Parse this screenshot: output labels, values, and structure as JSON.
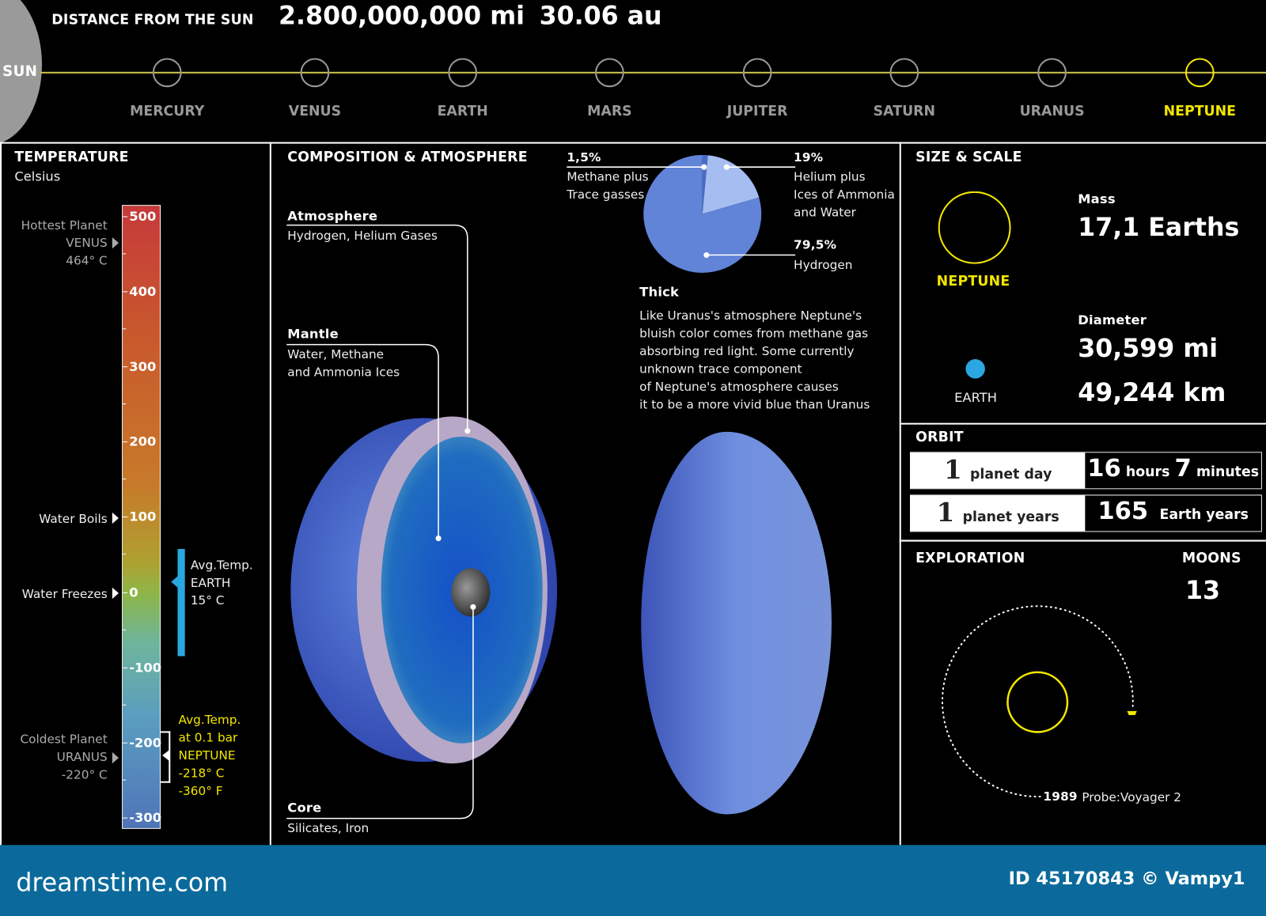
{
  "header": {
    "distance_label": "DISTANCE FROM THE SUN",
    "distance_mi": "2.800,000,000 mi",
    "distance_au": "30.06 au",
    "sun_label": "SUN",
    "planets": [
      "MERCURY",
      "VENUS",
      "EARTH",
      "MARS",
      "JUPITER",
      "SATURN",
      "URANUS",
      "NEPTUNE"
    ],
    "selected": "NEPTUNE"
  },
  "temperature": {
    "title": "TEMPERATURE",
    "unit": "Celsius",
    "scale_ticks": [
      "500",
      "400",
      "300",
      "200",
      "100",
      "0",
      "-100",
      "-200",
      "-300"
    ],
    "hottest": {
      "label": "Hottest Planet",
      "planet": "VENUS",
      "temp": "464° C"
    },
    "boils": "Water Boils",
    "freezes": "Water Freezes",
    "earth": {
      "l1": "Avg.Temp.",
      "l2": "EARTH",
      "l3": "15° C"
    },
    "coldest": {
      "label": "Coldest Planet",
      "planet": "URANUS",
      "temp": "-220° C"
    },
    "neptune": {
      "l1": "Avg.Temp.",
      "l2": "at 0.1 bar",
      "l3": "NEPTUNE",
      "l4": "-218° C",
      "l5": "-360° F"
    }
  },
  "composition": {
    "title": "COMPOSITION & ATMOSPHERE",
    "atmosphere": {
      "name": "Atmosphere",
      "desc": "Hydrogen, Helium Gases"
    },
    "mantle": {
      "name": "Mantle",
      "desc1": "Water, Methane",
      "desc2": "and Ammonia Ices"
    },
    "core": {
      "name": "Core",
      "desc": "Silicates, Iron"
    },
    "pie": [
      {
        "pct": "1,5%",
        "value": 1.5,
        "l1": "Methane plus",
        "l2": "Trace gasses",
        "color": "#4a6cc8"
      },
      {
        "pct": "19%",
        "value": 19,
        "l1": "Helium plus",
        "l2": "Ices of Ammonia",
        "l3": "and Water",
        "color": "#a6bdf2"
      },
      {
        "pct": "79,5%",
        "value": 79.5,
        "l1": "Hydrogen",
        "color": "#6183d8"
      }
    ],
    "thick_title": "Thick",
    "thick_lines": [
      "Like Uranus's atmosphere Neptune's",
      "bluish color comes from methane gas",
      "absorbing red light. Some currently",
      "unknown trace component",
      "of Neptune's atmosphere causes",
      "it to be a more vivid blue than Uranus"
    ]
  },
  "size": {
    "title": "SIZE & SCALE",
    "neptune": "NEPTUNE",
    "earth": "EARTH",
    "mass_label": "Mass",
    "mass": "17,1 Earths",
    "diameter_label": "Diameter",
    "diameter_mi": "30,599 mi",
    "diameter_km": "49,244 km"
  },
  "orbit": {
    "title": "ORBIT",
    "day": {
      "n": "1",
      "label": "planet day",
      "h": "16",
      "hu": "hours",
      "m": "7",
      "mu": "minutes"
    },
    "year": {
      "n": "1",
      "label": "planet years",
      "v": "165",
      "vu": "Earth years"
    }
  },
  "exploration": {
    "title": "EXPLORATION",
    "moons_label": "MOONS",
    "moons": "13",
    "year": "1989",
    "probe": "Probe:Voyager 2"
  },
  "footer": {
    "brand": "dreamstime.com",
    "id": "ID 45170843 © Vampy1",
    "color": "#0b6a9b"
  },
  "colors": {
    "accent": "#f2e600",
    "earth": "#2aa7e2"
  }
}
